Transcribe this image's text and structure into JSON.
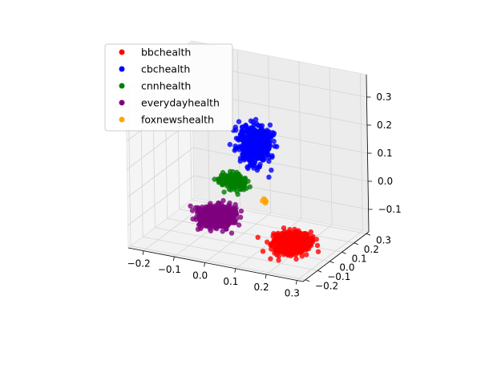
{
  "chart_data": {
    "type": "scatter",
    "projection": "3d",
    "title": "",
    "xlabel": "",
    "ylabel": "",
    "zlabel": "",
    "grid": true,
    "legend_position": "upper-left",
    "xlim": [
      -0.25,
      0.32
    ],
    "ylim": [
      -0.22,
      0.32
    ],
    "zlim": [
      -0.18,
      0.38
    ],
    "x_ticks": [
      "−0.2",
      "−0.1",
      "0.0",
      "0.1",
      "0.2",
      "0.3"
    ],
    "y_ticks": [
      "−0.2",
      "−0.1",
      "0.0",
      "0.1",
      "0.2",
      "0.3"
    ],
    "z_ticks": [
      "−0.1",
      "0.0",
      "0.1",
      "0.2",
      "0.3"
    ],
    "series": [
      {
        "name": "bbchealth",
        "color": "#ff0000",
        "cluster": {
          "x_center": 0.22,
          "y_center": -0.05,
          "z_center": -0.12,
          "x_spread": 0.06,
          "y_spread": 0.08,
          "z_spread": 0.03
        }
      },
      {
        "name": "cbchealth",
        "color": "#0000ff",
        "cluster": {
          "x_center": 0.05,
          "y_center": 0.08,
          "z_center": 0.15,
          "x_spread": 0.05,
          "y_spread": 0.05,
          "z_spread": 0.07
        }
      },
      {
        "name": "cnnhealth",
        "color": "#008000",
        "cluster": {
          "x_center": -0.03,
          "y_center": 0.1,
          "z_center": 0.0,
          "x_spread": 0.05,
          "y_spread": 0.03,
          "z_spread": 0.03
        }
      },
      {
        "name": "everydayhealth",
        "color": "#800080",
        "cluster": {
          "x_center": -0.08,
          "y_center": 0.08,
          "z_center": -0.13,
          "x_spread": 0.06,
          "y_spread": 0.08,
          "z_spread": 0.03
        }
      },
      {
        "name": "foxnewshealth",
        "color": "#ffa500",
        "cluster": {
          "x_center": 0.07,
          "y_center": 0.1,
          "z_center": -0.05,
          "x_spread": 0.01,
          "y_spread": 0.01,
          "z_spread": 0.01
        }
      }
    ]
  }
}
